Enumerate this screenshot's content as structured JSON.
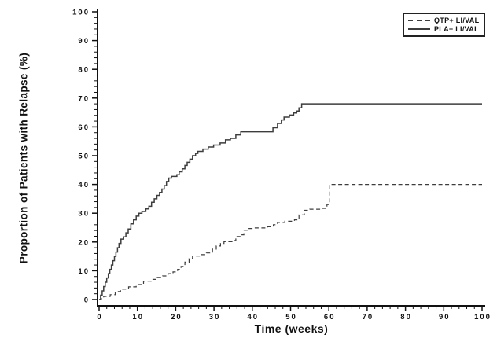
{
  "page": {
    "background": "#ffffff"
  },
  "chart_data": {
    "type": "line",
    "subtype": "kaplan-meier-step",
    "title": "",
    "xlabel": "Time (weeks)",
    "ylabel": "Proportion of Patients with Relapse (%)",
    "xlim": [
      0,
      100
    ],
    "ylim": [
      0,
      100
    ],
    "x_ticks": [
      0,
      10,
      20,
      30,
      40,
      50,
      60,
      70,
      80,
      90,
      100
    ],
    "y_ticks": [
      0,
      10,
      20,
      30,
      40,
      50,
      60,
      70,
      80,
      90,
      100
    ],
    "x_minor_tick_step": 2,
    "y_minor_tick_step": 2,
    "grid": false,
    "axis_color": "#111111",
    "tick_label_color": "#111111",
    "legend": {
      "position": "top-right",
      "border_color": "#222222",
      "entries": [
        {
          "label": "QTP+ LI/VAL",
          "line_style": "dashed"
        },
        {
          "label": "PLA+ LI/VAL",
          "line_style": "solid"
        }
      ]
    },
    "series": [
      {
        "name": "QTP+ LI/VAL",
        "line_style": "dashed",
        "color": "#3d3d3d",
        "points": [
          [
            0,
            0
          ],
          [
            0.6,
            0.6
          ],
          [
            1.2,
            1.1
          ],
          [
            2.9,
            1.7
          ],
          [
            4.2,
            2.8
          ],
          [
            5.6,
            3.6
          ],
          [
            7.7,
            4.4
          ],
          [
            9.7,
            5.2
          ],
          [
            11.6,
            6.4
          ],
          [
            13.6,
            7.0
          ],
          [
            15.2,
            7.7
          ],
          [
            16.6,
            8.2
          ],
          [
            18.0,
            9.0
          ],
          [
            19.3,
            9.6
          ],
          [
            20.5,
            10.5
          ],
          [
            21.4,
            11.5
          ],
          [
            22.4,
            13.0
          ],
          [
            23.5,
            14.2
          ],
          [
            24.4,
            15.1
          ],
          [
            26.5,
            15.6
          ],
          [
            28.0,
            16.2
          ],
          [
            29.6,
            17.5
          ],
          [
            30.6,
            18.6
          ],
          [
            31.7,
            19.5
          ],
          [
            32.6,
            20.1
          ],
          [
            34.7,
            20.5
          ],
          [
            35.7,
            21.9
          ],
          [
            36.8,
            22.5
          ],
          [
            37.8,
            24.1
          ],
          [
            39.0,
            24.7
          ],
          [
            40.2,
            24.9
          ],
          [
            44.0,
            25.3
          ],
          [
            45.5,
            26.0
          ],
          [
            46.6,
            26.8
          ],
          [
            48.5,
            27.2
          ],
          [
            51.0,
            27.7
          ],
          [
            52.2,
            29.4
          ],
          [
            53.6,
            31.0
          ],
          [
            55.0,
            31.4
          ],
          [
            58.3,
            31.7
          ],
          [
            59.5,
            33.0
          ],
          [
            60.1,
            40.0
          ],
          [
            100,
            40.0
          ]
        ]
      },
      {
        "name": "PLA+ LI/VAL",
        "line_style": "solid",
        "color": "#3d3d3d",
        "points": [
          [
            0,
            0
          ],
          [
            0.4,
            1.5
          ],
          [
            0.8,
            3.0
          ],
          [
            1.2,
            4.5
          ],
          [
            1.6,
            6.0
          ],
          [
            2.0,
            7.5
          ],
          [
            2.4,
            9.0
          ],
          [
            2.8,
            10.5
          ],
          [
            3.2,
            12.0
          ],
          [
            3.6,
            13.5
          ],
          [
            4.0,
            15.0
          ],
          [
            4.4,
            16.5
          ],
          [
            4.8,
            18.0
          ],
          [
            5.2,
            19.5
          ],
          [
            5.7,
            21.0
          ],
          [
            6.4,
            21.8
          ],
          [
            7.0,
            23.2
          ],
          [
            7.6,
            24.5
          ],
          [
            8.3,
            26.3
          ],
          [
            9.0,
            27.7
          ],
          [
            9.7,
            29.0
          ],
          [
            10.4,
            30.0
          ],
          [
            11.2,
            30.6
          ],
          [
            12.2,
            31.5
          ],
          [
            13.0,
            32.4
          ],
          [
            13.7,
            33.8
          ],
          [
            14.4,
            35.0
          ],
          [
            15.1,
            36.2
          ],
          [
            15.8,
            37.2
          ],
          [
            16.4,
            38.4
          ],
          [
            17.0,
            39.6
          ],
          [
            17.6,
            41.0
          ],
          [
            18.2,
            42.2
          ],
          [
            18.9,
            42.8
          ],
          [
            20.3,
            43.4
          ],
          [
            20.9,
            44.4
          ],
          [
            21.7,
            45.4
          ],
          [
            22.4,
            46.6
          ],
          [
            23.0,
            47.7
          ],
          [
            23.7,
            48.8
          ],
          [
            24.4,
            50.0
          ],
          [
            25.2,
            50.8
          ],
          [
            25.8,
            51.5
          ],
          [
            27.1,
            52.3
          ],
          [
            28.5,
            53.0
          ],
          [
            29.9,
            53.7
          ],
          [
            31.6,
            54.4
          ],
          [
            33.0,
            55.5
          ],
          [
            34.3,
            56.0
          ],
          [
            35.7,
            57.2
          ],
          [
            37.0,
            58.3
          ],
          [
            44.6,
            58.3
          ],
          [
            45.4,
            59.7
          ],
          [
            46.6,
            61.2
          ],
          [
            47.6,
            62.4
          ],
          [
            48.3,
            63.4
          ],
          [
            49.7,
            64.1
          ],
          [
            50.8,
            64.8
          ],
          [
            51.6,
            65.5
          ],
          [
            52.2,
            66.6
          ],
          [
            52.9,
            68.0
          ],
          [
            100,
            68.0
          ]
        ]
      }
    ]
  }
}
